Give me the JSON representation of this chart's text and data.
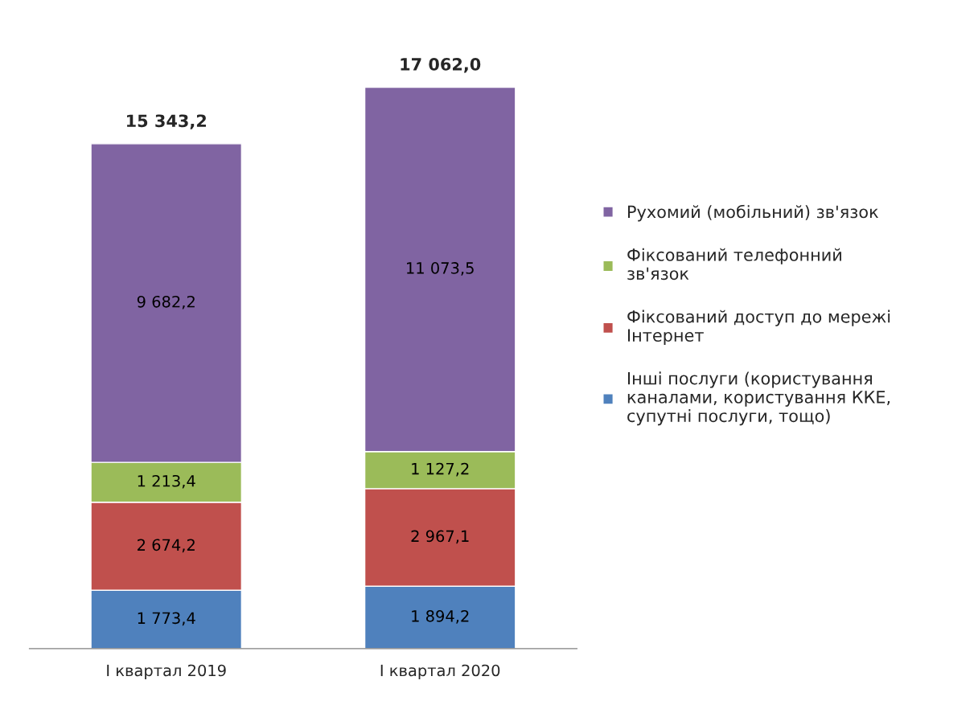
{
  "chart_data": {
    "type": "bar",
    "stacked": true,
    "categories": [
      "І квартал 2019",
      "І квартал 2020"
    ],
    "series": [
      {
        "name": "Інші послуги (користування\nканалами, користування ККЕ,\nсупутні послуги, тощо)",
        "color": "#4f81bd",
        "values": [
          1773.4,
          1894.2
        ],
        "value_labels": [
          "1 773,4",
          "1 894,2"
        ]
      },
      {
        "name": "Фіксований доступ до мережі\nІнтернет",
        "color": "#c0504d",
        "values": [
          2674.2,
          2967.1
        ],
        "value_labels": [
          "2 674,2",
          "2 967,1"
        ]
      },
      {
        "name": "Фіксований телефонний\nзв'язок",
        "color": "#9bbb59",
        "values": [
          1213.4,
          1127.2
        ],
        "value_labels": [
          "1 213,4",
          "1 127,2"
        ]
      },
      {
        "name": "Рухомий (мобільний) зв'язок",
        "color": "#8064a2",
        "values": [
          9682.2,
          11073.5
        ],
        "value_labels": [
          "9 682,2",
          "11 073,5"
        ]
      }
    ],
    "totals": [
      "15 343,2",
      "17 062,0"
    ],
    "legend": "right",
    "grid": false
  }
}
